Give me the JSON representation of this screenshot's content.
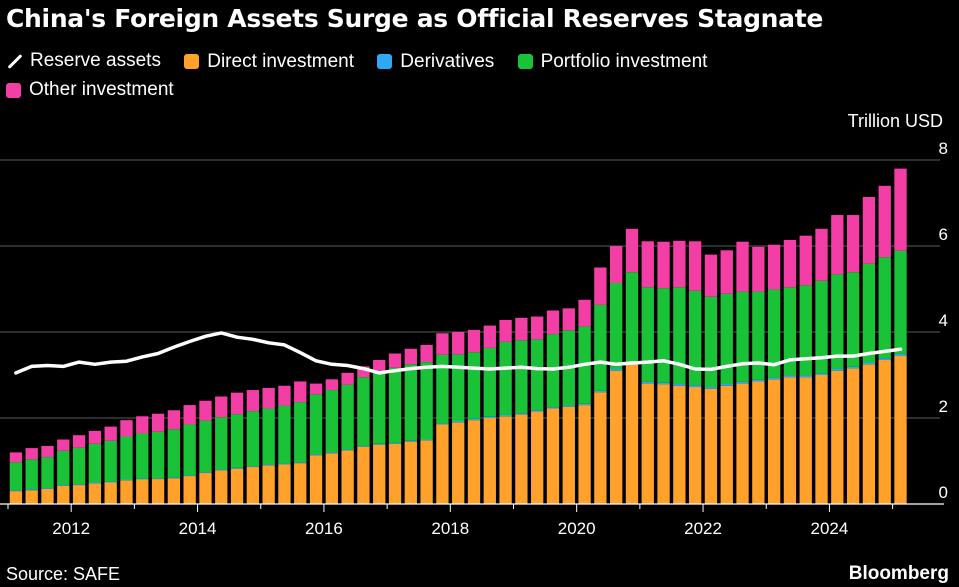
{
  "title": "China's Foreign Assets Surge as Official Reserves Stagnate",
  "legend": [
    {
      "label": "Reserve assets",
      "icon": "line",
      "color": "#ffffff"
    },
    {
      "label": "Direct investment",
      "icon": "square",
      "color": "#ffa12b"
    },
    {
      "label": "Derivatives",
      "icon": "square",
      "color": "#2fa8f5"
    },
    {
      "label": "Portfolio investment",
      "icon": "square",
      "color": "#19c237"
    },
    {
      "label": "Other investment",
      "icon": "square",
      "color": "#f23ea5"
    }
  ],
  "unit_label": "Trillion USD",
  "source": "Source: SAFE",
  "brand": "Bloomberg",
  "chart_data": {
    "type": "bar",
    "stacked": true,
    "title": "China's Foreign Assets Surge as Official Reserves Stagnate",
    "ylabel": "Trillion USD",
    "ylim": [
      0,
      8
    ],
    "y_ticks": [
      0,
      2,
      4,
      6,
      8
    ],
    "x_ticks": [
      "2012",
      "2014",
      "2016",
      "2018",
      "2020",
      "2022",
      "2024"
    ],
    "x_start": 2011.0,
    "x_end": 2025.75,
    "quarter_start": 2011.0,
    "series": [
      {
        "name": "Direct investment",
        "color": "#ffa12b",
        "values": [
          0.3,
          0.32,
          0.35,
          0.42,
          0.44,
          0.48,
          0.5,
          0.55,
          0.57,
          0.58,
          0.6,
          0.65,
          0.72,
          0.78,
          0.82,
          0.86,
          0.9,
          0.92,
          0.95,
          1.13,
          1.18,
          1.25,
          1.33,
          1.38,
          1.4,
          1.45,
          1.48,
          1.85,
          1.9,
          1.95,
          2.0,
          2.04,
          2.08,
          2.15,
          2.22,
          2.26,
          2.3,
          2.6,
          3.1,
          3.25,
          2.8,
          2.78,
          2.75,
          2.72,
          2.68,
          2.75,
          2.8,
          2.85,
          2.9,
          2.95,
          2.95,
          3.0,
          3.1,
          3.15,
          3.25,
          3.35,
          3.45
        ]
      },
      {
        "name": "Derivatives",
        "color": "#2fa8f5",
        "values": [
          0.02,
          0.02,
          0.02,
          0.02,
          0.02,
          0.02,
          0.02,
          0.02,
          0.02,
          0.02,
          0.02,
          0.02,
          0.02,
          0.02,
          0.02,
          0.02,
          0.02,
          0.02,
          0.02,
          0.02,
          0.02,
          0.02,
          0.02,
          0.02,
          0.02,
          0.02,
          0.02,
          0.02,
          0.03,
          0.03,
          0.03,
          0.03,
          0.03,
          0.03,
          0.03,
          0.03,
          0.03,
          0.03,
          0.04,
          0.04,
          0.04,
          0.04,
          0.04,
          0.04,
          0.04,
          0.04,
          0.04,
          0.04,
          0.04,
          0.04,
          0.04,
          0.04,
          0.04,
          0.04,
          0.04,
          0.04,
          0.04
        ]
      },
      {
        "name": "Portfolio investment",
        "color": "#19c237",
        "values": [
          0.65,
          0.7,
          0.72,
          0.8,
          0.85,
          0.9,
          0.95,
          1.0,
          1.05,
          1.08,
          1.12,
          1.18,
          1.2,
          1.22,
          1.25,
          1.28,
          1.3,
          1.35,
          1.4,
          1.4,
          1.45,
          1.5,
          1.6,
          1.7,
          1.75,
          1.78,
          1.8,
          1.6,
          1.55,
          1.55,
          1.6,
          1.7,
          1.7,
          1.65,
          1.7,
          1.75,
          1.8,
          2.0,
          2.0,
          2.1,
          2.2,
          2.2,
          2.25,
          2.2,
          2.1,
          2.1,
          2.1,
          2.05,
          2.05,
          2.05,
          2.1,
          2.15,
          2.2,
          2.2,
          2.3,
          2.35,
          2.4
        ]
      },
      {
        "name": "Other investment",
        "color": "#f23ea5",
        "values": [
          0.23,
          0.26,
          0.26,
          0.26,
          0.29,
          0.3,
          0.33,
          0.38,
          0.4,
          0.42,
          0.44,
          0.45,
          0.46,
          0.48,
          0.5,
          0.49,
          0.48,
          0.46,
          0.48,
          0.25,
          0.25,
          0.28,
          0.25,
          0.25,
          0.33,
          0.36,
          0.4,
          0.5,
          0.52,
          0.52,
          0.52,
          0.51,
          0.52,
          0.53,
          0.55,
          0.51,
          0.62,
          0.87,
          0.86,
          1.01,
          1.07,
          1.08,
          1.08,
          1.15,
          0.98,
          1.01,
          1.16,
          1.04,
          1.04,
          1.1,
          1.15,
          1.21,
          1.38,
          1.33,
          1.55,
          1.66,
          1.91
        ]
      },
      {
        "name": "Reserve assets",
        "type": "line",
        "color": "#ffffff",
        "values": [
          3.05,
          3.2,
          3.22,
          3.2,
          3.3,
          3.25,
          3.3,
          3.32,
          3.42,
          3.5,
          3.65,
          3.78,
          3.9,
          3.98,
          3.88,
          3.83,
          3.75,
          3.7,
          3.52,
          3.33,
          3.25,
          3.22,
          3.15,
          3.05,
          3.1,
          3.15,
          3.18,
          3.2,
          3.18,
          3.16,
          3.14,
          3.16,
          3.18,
          3.15,
          3.14,
          3.18,
          3.25,
          3.3,
          3.25,
          3.28,
          3.3,
          3.33,
          3.25,
          3.14,
          3.13,
          3.2,
          3.26,
          3.28,
          3.24,
          3.35,
          3.38,
          3.4,
          3.44,
          3.44,
          3.5,
          3.55,
          3.6
        ]
      }
    ]
  }
}
